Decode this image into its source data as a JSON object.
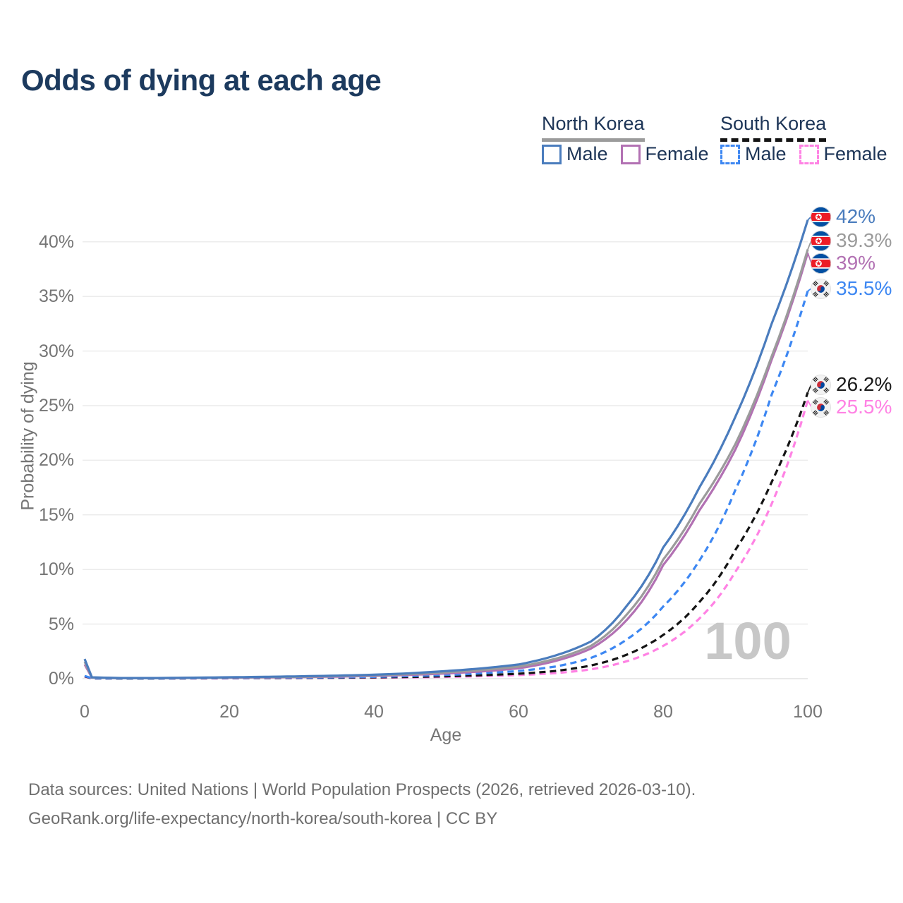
{
  "title": "Odds of dying at each age",
  "legend": {
    "groups": [
      {
        "label": "North Korea",
        "line_style": "solid",
        "line_color": "#9b9b9b",
        "items": [
          {
            "label": "Male",
            "color": "#4a7cbd",
            "dashed": false
          },
          {
            "label": "Female",
            "color": "#b271b3",
            "dashed": false
          }
        ]
      },
      {
        "label": "South Korea",
        "line_style": "dashed",
        "line_color": "#141414",
        "items": [
          {
            "label": "Male",
            "color": "#3d87f2",
            "dashed": true
          },
          {
            "label": "Female",
            "color": "#ff82e4",
            "dashed": true
          }
        ]
      }
    ]
  },
  "chart_data": {
    "type": "line",
    "title": "Odds of dying at each age",
    "xlabel": "Age",
    "ylabel": "Probability of dying",
    "xlim": [
      0,
      100
    ],
    "ylim": [
      0,
      43
    ],
    "grid": "horizontal",
    "legend_position": "top-right",
    "x_ticks": [
      0,
      20,
      40,
      60,
      80,
      100
    ],
    "y_ticks": [
      "0%",
      "5%",
      "10%",
      "15%",
      "20%",
      "25%",
      "30%",
      "35%",
      "40%"
    ],
    "hover_age_watermark": "100",
    "ages": [
      0,
      1,
      5,
      10,
      15,
      20,
      25,
      30,
      35,
      40,
      45,
      50,
      55,
      60,
      65,
      70,
      75,
      80,
      85,
      90,
      95,
      100
    ],
    "series": [
      {
        "name": "South Korea female",
        "country": "South Korea",
        "sex": "female",
        "color": "#ff82e4",
        "dashed": true,
        "values": [
          0.18,
          0.02,
          0.012,
          0.012,
          0.022,
          0.03,
          0.04,
          0.05,
          0.065,
          0.085,
          0.115,
          0.16,
          0.23,
          0.33,
          0.5,
          0.85,
          1.6,
          3.0,
          5.5,
          9.8,
          16.0,
          25.5
        ]
      },
      {
        "name": "South Korea total",
        "country": "South Korea",
        "sex": "total",
        "color": "#141414",
        "dashed": true,
        "values": [
          0.22,
          0.025,
          0.015,
          0.015,
          0.03,
          0.045,
          0.055,
          0.07,
          0.09,
          0.12,
          0.16,
          0.22,
          0.32,
          0.45,
          0.7,
          1.2,
          2.2,
          4.0,
          7.0,
          11.8,
          18.0,
          26.2
        ]
      },
      {
        "name": "South Korea male",
        "country": "South Korea",
        "sex": "male",
        "color": "#3d87f2",
        "dashed": true,
        "values": [
          0.25,
          0.03,
          0.02,
          0.02,
          0.04,
          0.06,
          0.08,
          0.1,
          0.13,
          0.17,
          0.24,
          0.34,
          0.5,
          0.7,
          1.1,
          1.9,
          3.6,
          6.6,
          10.8,
          17.3,
          26.0,
          35.5
        ]
      },
      {
        "name": "North Korea female",
        "country": "North Korea",
        "sex": "female",
        "color": "#b271b3",
        "dashed": false,
        "values": [
          1.3,
          0.1,
          0.05,
          0.05,
          0.07,
          0.09,
          0.12,
          0.15,
          0.19,
          0.25,
          0.35,
          0.48,
          0.67,
          0.95,
          1.6,
          2.75,
          5.4,
          10.4,
          15.4,
          21.0,
          29.2,
          39.0
        ]
      },
      {
        "name": "North Korea total",
        "country": "North Korea",
        "sex": "total",
        "color": "#9b9b9b",
        "dashed": false,
        "values": [
          1.55,
          0.11,
          0.05,
          0.05,
          0.08,
          0.11,
          0.14,
          0.18,
          0.23,
          0.3,
          0.42,
          0.58,
          0.8,
          1.1,
          1.8,
          3.0,
          5.9,
          10.9,
          16.0,
          21.5,
          29.5,
          39.3
        ]
      },
      {
        "name": "North Korea male",
        "country": "North Korea",
        "sex": "male",
        "color": "#4a7cbd",
        "dashed": false,
        "values": [
          1.8,
          0.12,
          0.06,
          0.06,
          0.09,
          0.13,
          0.17,
          0.22,
          0.28,
          0.36,
          0.5,
          0.7,
          0.95,
          1.3,
          2.1,
          3.4,
          6.7,
          12.0,
          17.5,
          24.0,
          32.5,
          42.0
        ]
      }
    ],
    "end_labels": [
      {
        "text": "42%",
        "value": 42.0,
        "series": "North Korea male",
        "flag": "north-korea",
        "color": "#4a7cbd"
      },
      {
        "text": "39.3%",
        "value": 39.3,
        "series": "North Korea total",
        "flag": "north-korea",
        "color": "#9b9b9b"
      },
      {
        "text": "39%",
        "value": 39.0,
        "series": "North Korea female",
        "flag": "north-korea",
        "color": "#b271b3"
      },
      {
        "text": "35.5%",
        "value": 35.5,
        "series": "South Korea male",
        "flag": "south-korea",
        "color": "#3d87f2"
      },
      {
        "text": "26.2%",
        "value": 26.2,
        "series": "South Korea total",
        "flag": "south-korea",
        "color": "#1a1a1a"
      },
      {
        "text": "25.5%",
        "value": 25.5,
        "series": "South Korea female",
        "flag": "south-korea",
        "color": "#ff82e4"
      }
    ]
  },
  "footer": {
    "line1": "Data sources: United Nations | World Population Prospects (2026, retrieved 2026-03-10).",
    "line2": "GeoRank.org/life-expectancy/north-korea/south-korea | CC BY"
  }
}
